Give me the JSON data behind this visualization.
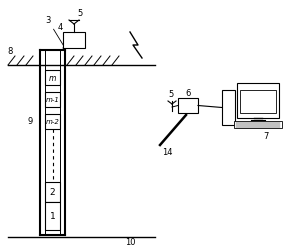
{
  "bg_color": "#ffffff",
  "line_color": "#000000",
  "fig_width": 3.03,
  "fig_height": 2.51,
  "dpi": 100
}
